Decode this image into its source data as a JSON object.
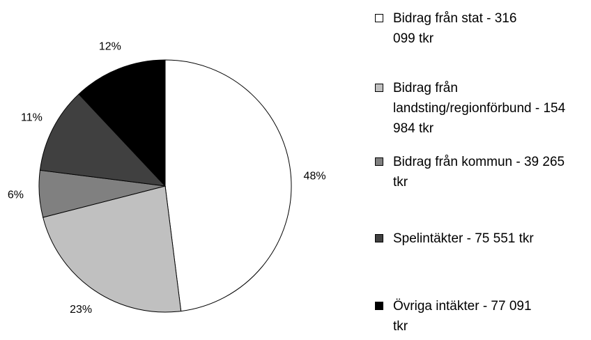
{
  "chart_data": {
    "type": "pie",
    "categories": [
      "Bidrag från stat - 316 099 tkr",
      "Bidrag från landsting/regionförbund - 154 984 tkr",
      "Bidrag från kommun - 39 265 tkr",
      "Spelintäkter - 75 551 tkr",
      "Övriga intäkter - 77 091 tkr"
    ],
    "values": [
      48,
      23,
      6,
      11,
      12
    ],
    "value_labels": [
      "48%",
      "23%",
      "6%",
      "11%",
      "12%"
    ],
    "colors": [
      "#ffffff",
      "#c0c0c0",
      "#808080",
      "#404040",
      "#000000"
    ]
  }
}
